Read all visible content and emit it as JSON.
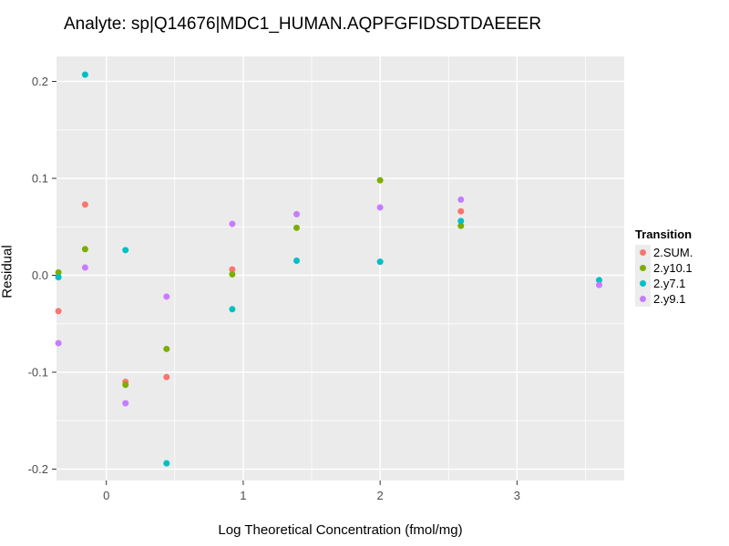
{
  "chart_data": {
    "type": "scatter",
    "title": "Analyte: sp|Q14676|MDC1_HUMAN.AQPFGFIDSDTDAEEER",
    "xlabel": "Log Theoretical Concentration (fmol/mg)",
    "ylabel": "Residual",
    "xlim": [
      -0.364,
      3.783
    ],
    "ylim": [
      -0.2117,
      0.2258
    ],
    "x_major_ticks": [
      0,
      1,
      2,
      3
    ],
    "x_tick_labels": [
      "0",
      "1",
      "2",
      "3"
    ],
    "x_minor_ticks": [
      0.5,
      1.5,
      2.5,
      3.5
    ],
    "y_major_ticks": [
      0.2,
      0.1,
      0.0,
      -0.1,
      -0.2
    ],
    "y_tick_labels": [
      "0.2",
      "0.1",
      "0.0",
      "-0.1",
      "-0.2"
    ],
    "y_minor_ticks": [
      0.15,
      0.05,
      -0.05,
      -0.15
    ],
    "grid": "on",
    "panel_background": "#EBEBEB",
    "grid_color": "#FFFFFF",
    "tick_label_color": "#4D4D4D",
    "tick_mark_color": "#333333",
    "legend_title": "Transition",
    "legend_position": "right",
    "series": [
      {
        "name": "2.SUM.",
        "color": "#F8766D",
        "points": [
          [
            -0.35,
            -0.037
          ],
          [
            -0.155,
            0.073
          ],
          [
            0.14,
            -0.11
          ],
          [
            0.44,
            -0.105
          ],
          [
            0.92,
            0.006
          ],
          [
            2.59,
            0.066
          ]
        ]
      },
      {
        "name": "2.y10.1",
        "color": "#7CAE00",
        "points": [
          [
            -0.35,
            0.003
          ],
          [
            -0.155,
            0.027
          ],
          [
            0.14,
            -0.113
          ],
          [
            0.44,
            -0.076
          ],
          [
            0.92,
            0.001
          ],
          [
            1.39,
            0.049
          ],
          [
            2.0,
            0.098
          ],
          [
            2.59,
            0.051
          ]
        ]
      },
      {
        "name": "2.y7.1",
        "color": "#00BFC4",
        "points": [
          [
            -0.35,
            -0.002
          ],
          [
            -0.155,
            0.207
          ],
          [
            0.14,
            0.026
          ],
          [
            0.44,
            -0.194
          ],
          [
            0.92,
            -0.035
          ],
          [
            1.39,
            0.015
          ],
          [
            2.0,
            0.014
          ],
          [
            2.59,
            0.056
          ],
          [
            3.6,
            -0.005
          ]
        ]
      },
      {
        "name": "2.y9.1",
        "color": "#C77CFF",
        "points": [
          [
            -0.35,
            -0.07
          ],
          [
            -0.155,
            0.008
          ],
          [
            0.14,
            -0.132
          ],
          [
            0.44,
            -0.022
          ],
          [
            0.92,
            0.053
          ],
          [
            1.39,
            0.063
          ],
          [
            2.0,
            0.07
          ],
          [
            2.59,
            0.078
          ],
          [
            3.6,
            -0.01
          ]
        ]
      }
    ]
  }
}
